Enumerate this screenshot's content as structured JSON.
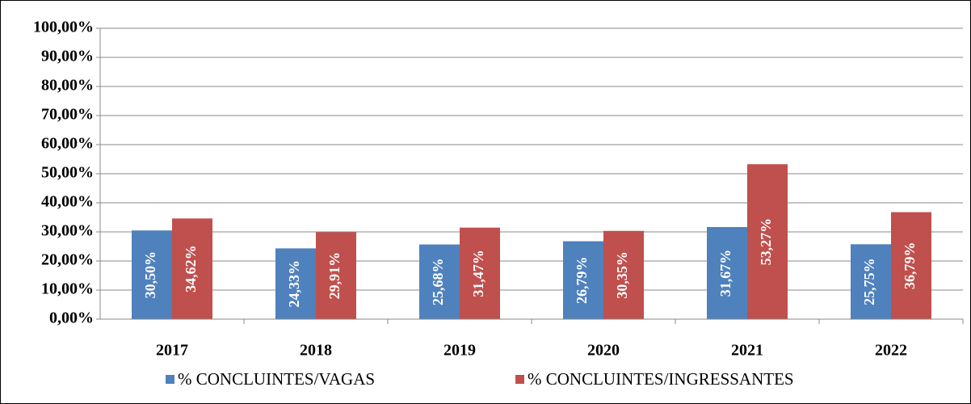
{
  "chart_data": {
    "type": "bar",
    "categories": [
      "2017",
      "2018",
      "2019",
      "2020",
      "2021",
      "2022"
    ],
    "series": [
      {
        "name": "% CONCLUINTES/VAGAS",
        "color": "#4f81bd",
        "values": [
          30.5,
          24.33,
          25.68,
          26.79,
          31.67,
          25.75
        ],
        "value_labels": [
          "30,50%",
          "24,33%",
          "25,68%",
          "26,79%",
          "31,67%",
          "25,75%"
        ]
      },
      {
        "name": "% CONCLUINTES/INGRESSANTES",
        "color": "#c0504d",
        "values": [
          34.62,
          29.91,
          31.47,
          30.35,
          53.27,
          36.79
        ],
        "value_labels": [
          "34,62%",
          "29,91%",
          "31,47%",
          "30,35%",
          "53,27%",
          "36,79%"
        ]
      }
    ],
    "ylim": [
      0,
      100
    ],
    "yticks": [
      {
        "value": 0,
        "label": "0,00%"
      },
      {
        "value": 10,
        "label": "10,00%"
      },
      {
        "value": 20,
        "label": "20,00%"
      },
      {
        "value": 30,
        "label": "30,00%"
      },
      {
        "value": 40,
        "label": "40,00%"
      },
      {
        "value": 50,
        "label": "50,00%"
      },
      {
        "value": 60,
        "label": "60,00%"
      },
      {
        "value": 70,
        "label": "70,00%"
      },
      {
        "value": 80,
        "label": "80,00%"
      },
      {
        "value": 90,
        "label": "90,00%"
      },
      {
        "value": 100,
        "label": "100,00%"
      }
    ],
    "grid": true,
    "legend": "bottom"
  }
}
